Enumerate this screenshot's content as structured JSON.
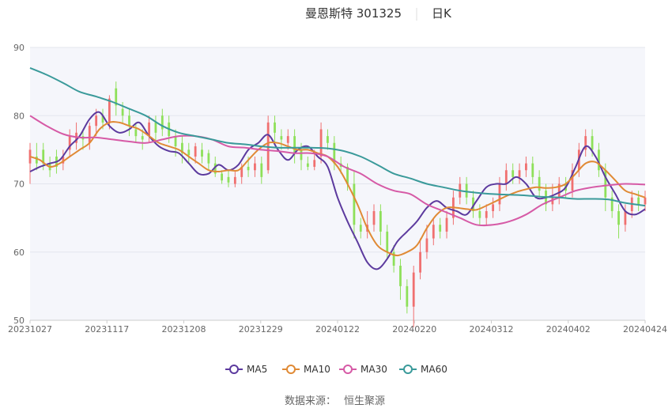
{
  "chart_data": {
    "type": "candlestick",
    "title": "曼恩斯特 301325",
    "period": "日K",
    "ylim": [
      50,
      90
    ],
    "y_ticks": [
      50,
      60,
      70,
      80,
      90
    ],
    "x_tick_labels": [
      "20231027",
      "20231117",
      "20231208",
      "20231229",
      "20240122",
      "20240220",
      "20240312",
      "20240402",
      "20240424"
    ],
    "legend": [
      {
        "name": "MA5",
        "color": "#5c3a9e"
      },
      {
        "name": "MA10",
        "color": "#e08a35"
      },
      {
        "name": "MA30",
        "color": "#d65aa6"
      },
      {
        "name": "MA60",
        "color": "#3a9a9a"
      }
    ],
    "candle_colors": {
      "up": "#f07070",
      "down": "#8ee05a"
    },
    "series": {
      "ma5": [
        [
          0,
          71.8
        ],
        [
          3,
          72.5
        ],
        [
          6,
          73
        ],
        [
          9,
          73.5
        ],
        [
          12,
          75.5
        ],
        [
          15,
          77
        ],
        [
          18,
          79.5
        ],
        [
          21,
          80.5
        ],
        [
          24,
          78.5
        ],
        [
          27,
          77.5
        ],
        [
          30,
          78
        ],
        [
          33,
          79
        ],
        [
          36,
          77
        ],
        [
          39,
          75.5
        ],
        [
          42,
          74.8
        ],
        [
          45,
          74.5
        ],
        [
          48,
          73
        ],
        [
          51,
          71.5
        ],
        [
          54,
          71.5
        ],
        [
          57,
          72.8
        ],
        [
          60,
          72
        ],
        [
          63,
          72.8
        ],
        [
          66,
          75
        ],
        [
          69,
          76
        ],
        [
          72,
          77.2
        ],
        [
          75,
          75
        ],
        [
          78,
          73.5
        ],
        [
          81,
          75
        ],
        [
          84,
          75.5
        ],
        [
          87,
          74
        ],
        [
          90,
          72.5
        ],
        [
          93,
          68
        ],
        [
          96,
          64.5
        ],
        [
          99,
          61.5
        ],
        [
          102,
          58.5
        ],
        [
          105,
          57.5
        ],
        [
          108,
          59
        ],
        [
          111,
          61.5
        ],
        [
          114,
          63
        ],
        [
          117,
          64.5
        ],
        [
          120,
          66.5
        ],
        [
          123,
          67.5
        ],
        [
          126,
          66.5
        ],
        [
          129,
          66
        ],
        [
          132,
          65.5
        ],
        [
          135,
          67.5
        ],
        [
          138,
          69.5
        ],
        [
          141,
          70
        ],
        [
          144,
          70
        ],
        [
          147,
          71
        ],
        [
          150,
          70
        ],
        [
          153,
          68
        ],
        [
          156,
          68
        ],
        [
          159,
          68.5
        ],
        [
          162,
          69.5
        ],
        [
          165,
          72.5
        ],
        [
          168,
          75.5
        ],
        [
          171,
          74
        ],
        [
          174,
          71
        ],
        [
          177,
          68.5
        ],
        [
          180,
          66
        ],
        [
          183,
          65.5
        ],
        [
          186,
          66.3
        ]
      ],
      "ma10": [
        [
          0,
          74
        ],
        [
          3,
          73.5
        ],
        [
          6,
          72.5
        ],
        [
          9,
          73
        ],
        [
          12,
          74
        ],
        [
          15,
          75
        ],
        [
          18,
          76
        ],
        [
          21,
          78
        ],
        [
          24,
          79
        ],
        [
          27,
          79
        ],
        [
          30,
          78.5
        ],
        [
          33,
          78
        ],
        [
          36,
          77
        ],
        [
          39,
          76
        ],
        [
          42,
          75.5
        ],
        [
          45,
          75
        ],
        [
          48,
          74
        ],
        [
          51,
          73
        ],
        [
          54,
          72
        ],
        [
          57,
          71.8
        ],
        [
          60,
          72
        ],
        [
          63,
          72
        ],
        [
          66,
          73.5
        ],
        [
          69,
          75
        ],
        [
          72,
          76
        ],
        [
          75,
          76
        ],
        [
          78,
          75.5
        ],
        [
          81,
          75
        ],
        [
          84,
          75
        ],
        [
          87,
          74.5
        ],
        [
          90,
          74
        ],
        [
          93,
          72.5
        ],
        [
          96,
          70
        ],
        [
          99,
          67
        ],
        [
          102,
          63.5
        ],
        [
          105,
          61
        ],
        [
          108,
          60
        ],
        [
          111,
          59.5
        ],
        [
          114,
          60
        ],
        [
          117,
          61
        ],
        [
          120,
          63.5
        ],
        [
          123,
          65.5
        ],
        [
          126,
          66.5
        ],
        [
          129,
          66.5
        ],
        [
          132,
          66.3
        ],
        [
          135,
          66.2
        ],
        [
          138,
          66.8
        ],
        [
          141,
          67.5
        ],
        [
          144,
          68.2
        ],
        [
          147,
          68.8
        ],
        [
          150,
          69.2
        ],
        [
          153,
          69.5
        ],
        [
          156,
          69.4
        ],
        [
          159,
          69.5
        ],
        [
          162,
          70
        ],
        [
          165,
          71.5
        ],
        [
          168,
          73
        ],
        [
          171,
          73.2
        ],
        [
          174,
          72
        ],
        [
          177,
          70.5
        ],
        [
          180,
          69
        ],
        [
          183,
          68.5
        ],
        [
          186,
          68
        ]
      ],
      "ma30": [
        [
          0,
          80
        ],
        [
          5,
          78.5
        ],
        [
          10,
          77.3
        ],
        [
          15,
          76.8
        ],
        [
          20,
          76.8
        ],
        [
          25,
          76.5
        ],
        [
          30,
          76.2
        ],
        [
          35,
          76
        ],
        [
          40,
          76.5
        ],
        [
          45,
          77
        ],
        [
          50,
          77
        ],
        [
          55,
          76.5
        ],
        [
          60,
          75.5
        ],
        [
          65,
          75.3
        ],
        [
          70,
          75
        ],
        [
          75,
          74.8
        ],
        [
          80,
          74.5
        ],
        [
          85,
          74.5
        ],
        [
          90,
          74
        ],
        [
          95,
          72.5
        ],
        [
          100,
          71.5
        ],
        [
          105,
          70
        ],
        [
          110,
          69
        ],
        [
          115,
          68.5
        ],
        [
          120,
          67
        ],
        [
          125,
          66
        ],
        [
          130,
          65
        ],
        [
          135,
          64
        ],
        [
          140,
          64
        ],
        [
          145,
          64.5
        ],
        [
          150,
          65.5
        ],
        [
          155,
          67
        ],
        [
          160,
          68
        ],
        [
          165,
          69
        ],
        [
          170,
          69.5
        ],
        [
          175,
          69.8
        ],
        [
          180,
          70
        ],
        [
          186,
          69.9
        ]
      ],
      "ma60": [
        [
          0,
          87
        ],
        [
          5,
          86
        ],
        [
          10,
          84.8
        ],
        [
          15,
          83.5
        ],
        [
          20,
          82.8
        ],
        [
          25,
          82
        ],
        [
          30,
          81
        ],
        [
          35,
          80
        ],
        [
          40,
          78.5
        ],
        [
          45,
          77.5
        ],
        [
          50,
          77
        ],
        [
          55,
          76.5
        ],
        [
          60,
          76
        ],
        [
          65,
          75.8
        ],
        [
          70,
          75.5
        ],
        [
          75,
          75.3
        ],
        [
          80,
          75.3
        ],
        [
          85,
          75.3
        ],
        [
          90,
          75.2
        ],
        [
          95,
          74.8
        ],
        [
          100,
          74
        ],
        [
          105,
          72.8
        ],
        [
          110,
          71.5
        ],
        [
          115,
          70.8
        ],
        [
          120,
          70
        ],
        [
          125,
          69.5
        ],
        [
          130,
          69
        ],
        [
          135,
          68.7
        ],
        [
          140,
          68.5
        ],
        [
          145,
          68.4
        ],
        [
          150,
          68.3
        ],
        [
          155,
          68.1
        ],
        [
          160,
          68
        ],
        [
          165,
          67.8
        ],
        [
          170,
          67.8
        ],
        [
          175,
          67.7
        ],
        [
          180,
          67.2
        ],
        [
          186,
          66.8
        ]
      ]
    },
    "candles": [
      [
        0,
        73,
        75,
        76,
        70
      ],
      [
        2,
        74,
        73,
        76,
        72
      ],
      [
        4,
        75,
        73,
        76,
        72
      ],
      [
        6,
        73,
        72,
        74,
        71
      ],
      [
        8,
        74,
        72.5,
        75,
        71.5
      ],
      [
        10,
        73,
        74,
        75,
        72
      ],
      [
        12,
        75,
        77,
        78,
        74
      ],
      [
        14,
        76,
        77.5,
        79,
        75
      ],
      [
        16,
        77,
        76.5,
        78,
        75
      ],
      [
        18,
        76,
        78.5,
        79,
        75
      ],
      [
        20,
        78.5,
        80,
        81,
        77
      ],
      [
        22,
        80,
        79,
        81,
        78
      ],
      [
        24,
        79,
        82.5,
        83,
        78
      ],
      [
        26,
        84,
        81.5,
        85,
        80
      ],
      [
        28,
        81,
        80,
        82,
        79
      ],
      [
        30,
        80,
        78.5,
        81,
        77
      ],
      [
        32,
        78,
        77,
        79,
        76
      ],
      [
        34,
        77,
        76.5,
        78,
        75
      ],
      [
        36,
        77,
        79,
        80,
        76
      ],
      [
        38,
        79,
        77.5,
        80,
        76
      ],
      [
        40,
        80,
        78,
        81,
        77
      ],
      [
        42,
        79,
        77,
        80,
        76
      ],
      [
        44,
        77,
        75.5,
        78,
        74
      ],
      [
        46,
        76,
        74.5,
        77,
        73
      ],
      [
        48,
        75,
        74.2,
        76,
        73
      ],
      [
        50,
        74,
        75.5,
        76,
        73
      ],
      [
        52,
        75,
        74,
        76,
        73
      ],
      [
        54,
        74.5,
        73,
        75,
        72
      ],
      [
        56,
        73,
        71.5,
        74,
        71
      ],
      [
        58,
        71.5,
        70.5,
        72,
        70
      ],
      [
        60,
        71,
        70.2,
        72,
        69.5
      ],
      [
        62,
        70,
        71,
        72,
        69.5
      ],
      [
        64,
        71,
        72.5,
        73,
        70
      ],
      [
        66,
        72.5,
        72,
        74,
        71
      ],
      [
        68,
        72,
        73,
        74,
        71
      ],
      [
        70,
        73,
        71,
        74,
        70
      ],
      [
        72,
        72,
        79,
        80,
        71.5
      ],
      [
        74,
        79,
        77.5,
        80,
        76
      ],
      [
        76,
        77,
        76.5,
        78,
        75
      ],
      [
        78,
        76,
        77,
        78,
        75
      ],
      [
        80,
        77,
        74.5,
        78,
        73
      ],
      [
        82,
        75,
        73.5,
        76,
        72
      ],
      [
        84,
        73,
        72.5,
        74,
        72
      ],
      [
        86,
        72.5,
        73.5,
        75,
        72
      ],
      [
        88,
        74,
        78,
        79,
        73
      ],
      [
        90,
        77,
        76,
        78,
        75
      ],
      [
        92,
        76,
        73,
        77,
        72
      ],
      [
        94,
        73,
        72.5,
        74,
        71.5
      ],
      [
        96,
        72.5,
        70,
        73,
        69
      ],
      [
        98,
        70,
        64,
        72,
        62
      ],
      [
        100,
        64,
        63,
        65,
        62
      ],
      [
        102,
        63,
        64,
        66,
        62
      ],
      [
        104,
        64,
        66,
        67,
        63
      ],
      [
        106,
        66,
        63,
        67,
        61
      ],
      [
        108,
        63,
        60,
        64,
        59
      ],
      [
        110,
        60,
        58,
        61,
        57
      ],
      [
        112,
        58,
        55,
        59,
        53
      ],
      [
        114,
        55,
        52,
        56,
        51
      ],
      [
        116,
        52,
        57,
        58,
        49
      ],
      [
        118,
        57,
        60,
        62,
        56
      ],
      [
        120,
        60,
        62,
        64,
        59
      ],
      [
        122,
        62,
        64,
        65,
        61
      ],
      [
        124,
        64,
        63,
        65,
        62
      ],
      [
        126,
        63,
        65,
        66,
        62
      ],
      [
        128,
        65,
        68,
        69,
        64
      ],
      [
        130,
        68,
        70,
        71,
        67
      ],
      [
        132,
        70,
        68,
        71,
        67
      ],
      [
        134,
        68,
        66,
        69,
        65
      ],
      [
        136,
        66,
        65,
        67,
        64
      ],
      [
        138,
        65,
        66,
        67,
        64
      ],
      [
        140,
        66,
        67,
        68,
        65
      ],
      [
        142,
        67,
        70,
        71,
        66
      ],
      [
        144,
        70,
        72,
        73,
        69
      ],
      [
        146,
        72,
        71,
        73,
        70
      ],
      [
        148,
        71,
        72,
        73,
        70
      ],
      [
        150,
        72,
        73,
        74,
        71
      ],
      [
        152,
        73,
        71,
        74,
        70
      ],
      [
        154,
        71,
        69,
        72,
        68
      ],
      [
        156,
        69,
        67,
        70,
        66
      ],
      [
        158,
        67,
        68,
        70,
        66
      ],
      [
        160,
        68,
        70,
        71,
        67
      ],
      [
        162,
        70,
        69,
        71,
        68
      ],
      [
        164,
        69,
        72,
        73,
        68
      ],
      [
        166,
        72,
        75,
        76,
        71
      ],
      [
        168,
        75,
        77,
        78,
        74
      ],
      [
        170,
        77,
        75,
        78,
        74
      ],
      [
        172,
        75,
        72,
        76,
        71
      ],
      [
        174,
        72,
        68,
        73,
        66
      ],
      [
        176,
        68,
        66,
        69,
        65
      ],
      [
        178,
        66,
        64,
        67,
        62
      ],
      [
        180,
        64,
        66,
        67,
        63
      ],
      [
        182,
        66,
        68,
        69,
        65
      ],
      [
        184,
        68,
        67,
        69,
        66
      ],
      [
        186,
        67,
        68,
        69,
        66
      ]
    ],
    "source_label": "数据来源：",
    "source_name": "恒生聚源"
  }
}
